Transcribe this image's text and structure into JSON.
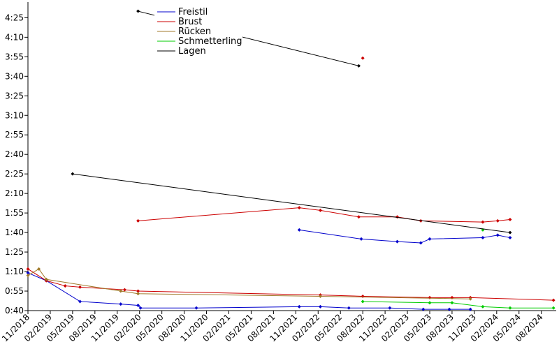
{
  "chart_data": {
    "type": "line",
    "title": "",
    "xlabel": "",
    "ylabel": "",
    "ylim": [
      "0:40",
      "4:37"
    ],
    "xlim": [
      "2018-11",
      "2024-10"
    ],
    "legend_placement": "top-left",
    "grid": false,
    "y_ticks": [
      "0:40",
      "0:55",
      "1:10",
      "1:25",
      "1:40",
      "1:55",
      "2:10",
      "2:25",
      "2:40",
      "2:55",
      "3:10",
      "3:25",
      "3:40",
      "3:55",
      "4:10",
      "4:25"
    ],
    "x_ticks": [
      "11/2018",
      "02/2019",
      "05/2019",
      "08/2019",
      "11/2019",
      "02/2020",
      "05/2020",
      "08/2020",
      "11/2020",
      "02/2021",
      "05/2021",
      "08/2021",
      "11/2021",
      "02/2022",
      "05/2022",
      "08/2022",
      "11/2022",
      "02/2023",
      "05/2023",
      "08/2023",
      "11/2023",
      "02/2024",
      "05/2024",
      "08/2024"
    ],
    "series": [
      {
        "name": "Freistil",
        "color": "#0000cc",
        "points": [
          [
            "2018-11-01",
            "1:09"
          ],
          [
            "2019-01-15",
            "1:03"
          ],
          [
            "2019-06-01",
            "0:47"
          ],
          [
            "2019-11-15",
            "0:45"
          ],
          [
            "2020-01-25",
            "0:44"
          ],
          [
            "2020-02-05",
            "0:42"
          ],
          [
            "2020-09-20",
            "0:42"
          ],
          [
            "2021-11-15",
            "0:43"
          ],
          [
            "2022-02-10",
            "0:43"
          ],
          [
            "2022-06-05",
            "0:42"
          ],
          [
            "2022-11-20",
            "0:42"
          ],
          [
            "2023-04-05",
            "0:41"
          ],
          [
            "2023-07-20",
            "0:41"
          ],
          [
            "2023-10-15",
            "0:41"
          ],
          [
            "2021-11-15",
            null
          ],
          [
            "2021-11-15",
            "1:42"
          ],
          [
            "2022-07-25",
            "1:35"
          ],
          [
            "2022-12-20",
            "1:33"
          ],
          [
            "2023-03-25",
            "1:32"
          ],
          [
            "2023-05-01",
            "1:35"
          ],
          [
            "2023-12-05",
            "1:36"
          ],
          [
            "2024-02-05",
            "1:38"
          ],
          [
            "2024-03-25",
            "1:36"
          ]
        ]
      },
      {
        "name": "Brust",
        "color": "#cc0000",
        "points": [
          [
            "2018-11-01",
            "1:12"
          ],
          [
            "2019-01-15",
            "1:03"
          ],
          [
            "2019-04-01",
            "0:59"
          ],
          [
            "2019-06-01",
            "0:58"
          ],
          [
            "2019-12-01",
            "0:56"
          ],
          [
            "2020-01-25",
            "0:55"
          ],
          [
            "2022-02-10",
            "0:52"
          ],
          [
            "2022-08-01",
            "0:51"
          ],
          [
            "2023-05-01",
            "0:50"
          ],
          [
            "2023-08-01",
            "0:50"
          ],
          [
            "2023-10-15",
            "0:50"
          ],
          [
            "2024-09-20",
            "0:48"
          ],
          [
            "2024-09-20",
            null
          ],
          [
            "2020-01-25",
            "1:49"
          ],
          [
            "2021-11-15",
            "1:59"
          ],
          [
            "2022-02-10",
            "1:57"
          ],
          [
            "2022-07-15",
            "1:52"
          ],
          [
            "2022-12-20",
            "1:52"
          ],
          [
            "2023-03-25",
            "1:49"
          ],
          [
            "2023-12-05",
            "1:48"
          ],
          [
            "2024-02-05",
            "1:49"
          ],
          [
            "2024-03-25",
            "1:50"
          ],
          [
            "2024-03-25",
            null
          ],
          [
            "2022-08-01",
            "3:54"
          ]
        ]
      },
      {
        "name": "Rücken",
        "color": "#a07a2a",
        "points": [
          [
            "2018-11-01",
            "1:07"
          ],
          [
            "2018-12-15",
            "1:12"
          ],
          [
            "2019-01-15",
            "1:04"
          ],
          [
            "2019-11-15",
            "0:55"
          ],
          [
            "2020-01-25",
            "0:53"
          ],
          [
            "2022-02-10",
            "0:51"
          ],
          [
            "2023-10-15",
            "0:49"
          ]
        ]
      },
      {
        "name": "Schmetterling",
        "color": "#00cc00",
        "points": [
          [
            "2022-08-01",
            "0:47"
          ],
          [
            "2023-05-01",
            "0:46"
          ],
          [
            "2023-08-01",
            "0:46"
          ],
          [
            "2023-12-05",
            "0:43"
          ],
          [
            "2024-03-25",
            "0:42"
          ],
          [
            "2024-09-20",
            "0:42"
          ],
          [
            "2024-09-20",
            null
          ],
          [
            "2023-12-05",
            "1:42"
          ]
        ]
      },
      {
        "name": "Lagen",
        "color": "#000000",
        "points": [
          [
            "2019-05-01",
            "2:25"
          ],
          [
            "2024-03-25",
            "1:40"
          ],
          [
            "2024-03-25",
            null
          ],
          [
            "2020-01-25",
            "4:30"
          ],
          [
            "2022-07-15",
            "3:48"
          ]
        ]
      }
    ]
  }
}
